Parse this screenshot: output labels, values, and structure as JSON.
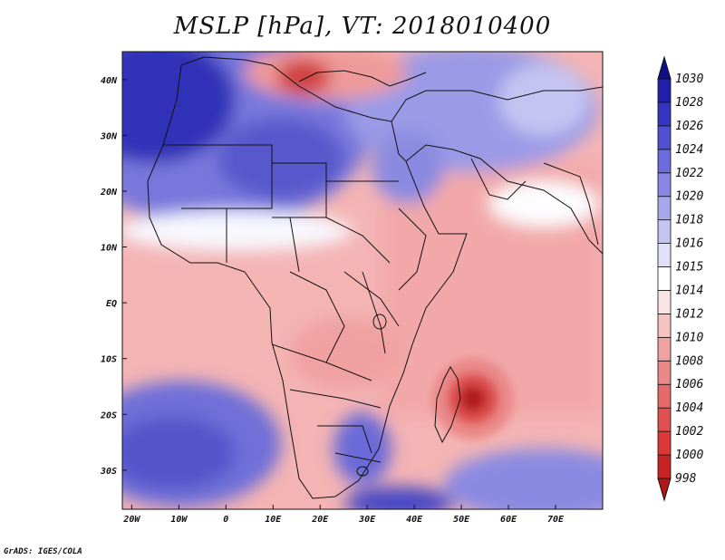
{
  "title": "MSLP [hPa], VT: 2018010400",
  "credit": "GrADS: IGES/COLA",
  "map": {
    "lon_range": [
      -22,
      80
    ],
    "lat_range": [
      -37,
      45
    ],
    "lon_ticks": [
      {
        "value": -20,
        "label": "20W"
      },
      {
        "value": -10,
        "label": "10W"
      },
      {
        "value": 0,
        "label": "0"
      },
      {
        "value": 10,
        "label": "10E"
      },
      {
        "value": 20,
        "label": "20E"
      },
      {
        "value": 30,
        "label": "30E"
      },
      {
        "value": 40,
        "label": "40E"
      },
      {
        "value": 50,
        "label": "50E"
      },
      {
        "value": 60,
        "label": "60E"
      },
      {
        "value": 70,
        "label": "70E"
      }
    ],
    "lat_ticks": [
      {
        "value": 40,
        "label": "40N"
      },
      {
        "value": 30,
        "label": "30N"
      },
      {
        "value": 20,
        "label": "20N"
      },
      {
        "value": 10,
        "label": "10N"
      },
      {
        "value": 0,
        "label": "EQ"
      },
      {
        "value": -10,
        "label": "10S"
      },
      {
        "value": -20,
        "label": "20S"
      },
      {
        "value": -30,
        "label": "30S"
      }
    ]
  },
  "colorbar": {
    "levels": [
      "998",
      "1000",
      "1002",
      "1004",
      "1006",
      "1008",
      "1010",
      "1012",
      "1014",
      "1015",
      "1016",
      "1018",
      "1020",
      "1022",
      "1024",
      "1026",
      "1028",
      "1030"
    ],
    "colors": [
      "#b01818",
      "#c82424",
      "#dc3838",
      "#e05050",
      "#e46a6a",
      "#ea8888",
      "#f0a2a2",
      "#f6c2c2",
      "#fbe4e4",
      "#ffffff",
      "#e0e0f8",
      "#c4c4f2",
      "#a8a8ec",
      "#8888e4",
      "#6c6cdc",
      "#5050d0",
      "#3434c0",
      "#2020aa",
      "#10108a"
    ]
  }
}
